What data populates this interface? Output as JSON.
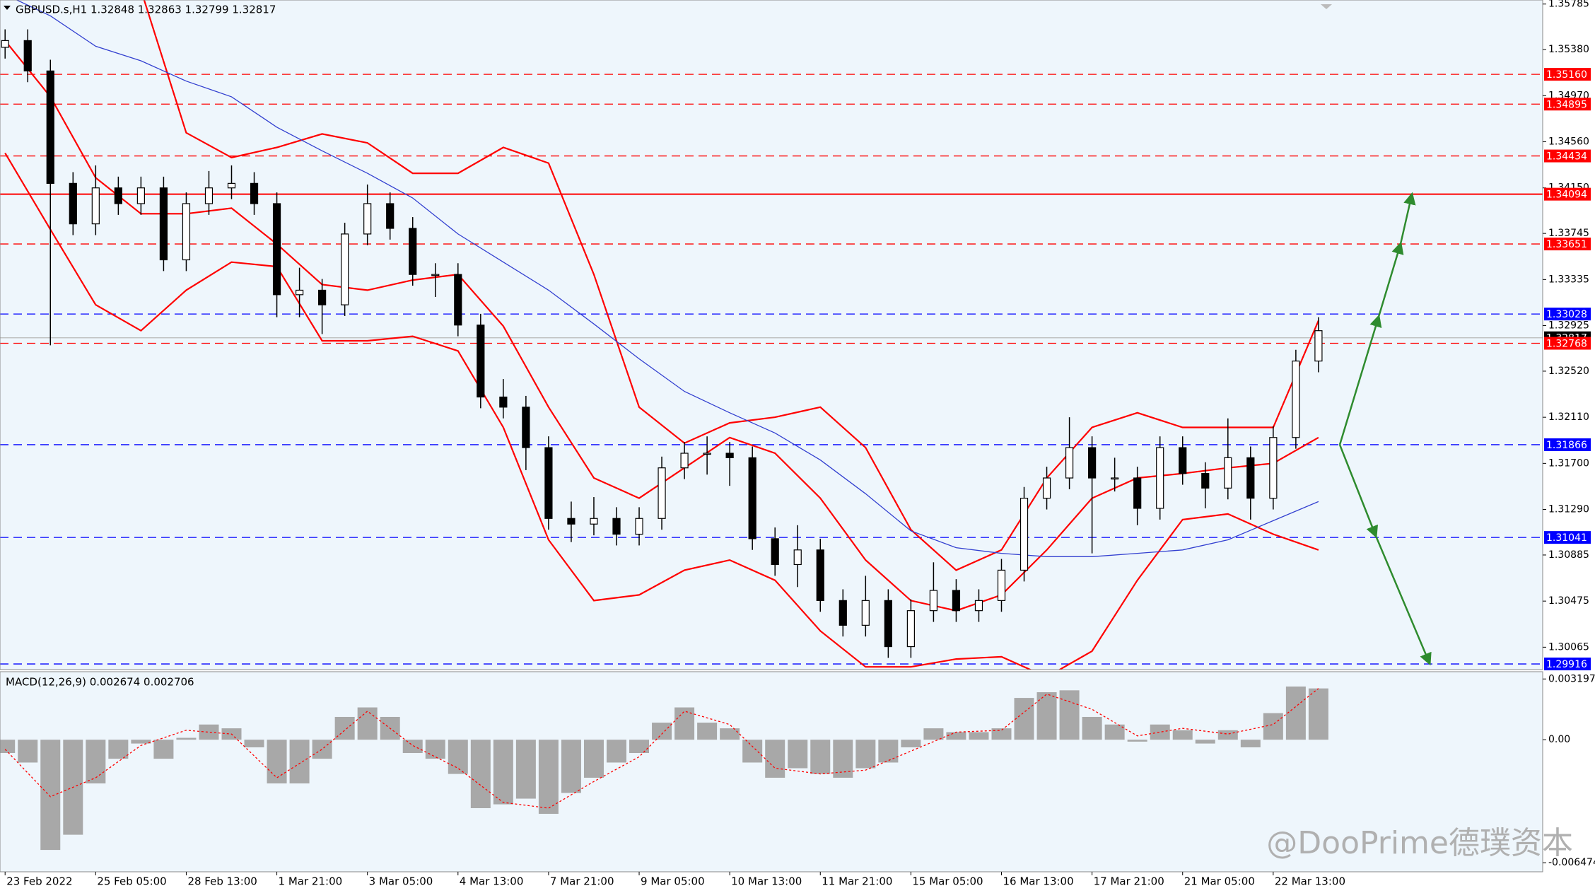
{
  "chart_data": [
    {
      "type": "candlestick",
      "title": "GBPUSD.s,H1  1.32848 1.32863 1.32799 1.32817",
      "background": "#eef6fc",
      "x": [
        0,
        8,
        16,
        24,
        32,
        40,
        48,
        56,
        64,
        72,
        80,
        88,
        96,
        104,
        112,
        120,
        128,
        136,
        144,
        152,
        160,
        168,
        176,
        184,
        192,
        200,
        208,
        216,
        224,
        232,
        240,
        248,
        256,
        264,
        272,
        280,
        288,
        296,
        304,
        312,
        320,
        328,
        336,
        344,
        352,
        360,
        368,
        376,
        384,
        392,
        400,
        408,
        416,
        424,
        432,
        440,
        448,
        456,
        464
      ],
      "open": [
        1.354,
        1.3546,
        1.3519,
        1.3419,
        1.3383,
        1.3415,
        1.3401,
        1.3415,
        1.3351,
        1.3401,
        1.3415,
        1.3419,
        1.3401,
        1.332,
        1.3324,
        1.3311,
        1.3374,
        1.3401,
        1.3379,
        1.3338,
        1.3338,
        1.3293,
        1.3229,
        1.322,
        1.3184,
        1.3121,
        1.3116,
        1.3121,
        1.3107,
        1.3121,
        1.3166,
        1.3179,
        1.3179,
        1.3175,
        1.3103,
        1.308,
        1.3093,
        1.3048,
        1.3026,
        1.3048,
        1.3007,
        1.3039,
        1.3057,
        1.3039,
        1.3048,
        1.3075,
        1.3139,
        1.3157,
        1.3184,
        1.3157,
        1.3157,
        1.313,
        1.3184,
        1.3161,
        1.3148,
        1.3175,
        1.3139,
        1.3193,
        1.3261
      ],
      "high": [
        1.3556,
        1.3556,
        1.3529,
        1.3429,
        1.3435,
        1.3425,
        1.3425,
        1.3425,
        1.3411,
        1.343,
        1.3435,
        1.3429,
        1.3411,
        1.3344,
        1.3334,
        1.3384,
        1.3418,
        1.3411,
        1.3389,
        1.3348,
        1.3348,
        1.3303,
        1.3245,
        1.323,
        1.3194,
        1.3136,
        1.314,
        1.3131,
        1.3131,
        1.3176,
        1.3189,
        1.3194,
        1.3189,
        1.3185,
        1.3113,
        1.3115,
        1.3103,
        1.3058,
        1.307,
        1.3058,
        1.3049,
        1.3082,
        1.3067,
        1.3058,
        1.3085,
        1.3149,
        1.3167,
        1.3211,
        1.3194,
        1.3175,
        1.3167,
        1.3194,
        1.3194,
        1.3171,
        1.321,
        1.3185,
        1.3203,
        1.3271,
        1.33
      ],
      "low": [
        1.353,
        1.3509,
        1.3275,
        1.3373,
        1.3373,
        1.3391,
        1.3391,
        1.3341,
        1.3341,
        1.3391,
        1.3405,
        1.3391,
        1.33,
        1.33,
        1.3285,
        1.3301,
        1.3364,
        1.3369,
        1.3328,
        1.3318,
        1.3283,
        1.3219,
        1.321,
        1.3164,
        1.3111,
        1.31,
        1.3106,
        1.3097,
        1.3097,
        1.3111,
        1.3156,
        1.316,
        1.315,
        1.3093,
        1.307,
        1.306,
        1.3038,
        1.3016,
        1.3016,
        1.2997,
        1.2997,
        1.3029,
        1.3029,
        1.3029,
        1.3038,
        1.3065,
        1.3129,
        1.3147,
        1.309,
        1.3145,
        1.3115,
        1.312,
        1.3151,
        1.313,
        1.3138,
        1.312,
        1.3129,
        1.3183,
        1.3251
      ],
      "close": [
        1.3546,
        1.3519,
        1.3419,
        1.3383,
        1.3415,
        1.3401,
        1.3415,
        1.3351,
        1.3401,
        1.3415,
        1.3419,
        1.3401,
        1.332,
        1.3324,
        1.3311,
        1.3374,
        1.3401,
        1.3379,
        1.3338,
        1.3338,
        1.3293,
        1.3229,
        1.322,
        1.3184,
        1.3121,
        1.3116,
        1.3121,
        1.3107,
        1.3121,
        1.3166,
        1.3179,
        1.3179,
        1.3175,
        1.3103,
        1.308,
        1.3093,
        1.3048,
        1.3026,
        1.3048,
        1.3007,
        1.3039,
        1.3057,
        1.3039,
        1.3048,
        1.3075,
        1.3139,
        1.3157,
        1.3184,
        1.3157,
        1.3157,
        1.313,
        1.3184,
        1.3161,
        1.3148,
        1.3175,
        1.3139,
        1.3193,
        1.3261,
        1.3288
      ],
      "overlay_x": [
        0,
        16,
        32,
        48,
        64,
        80,
        96,
        112,
        128,
        144,
        160,
        176,
        192,
        208,
        224,
        240,
        256,
        272,
        288,
        304,
        320,
        336,
        352,
        368,
        384,
        400,
        416,
        432,
        448,
        464
      ],
      "overlays": [
        {
          "color": "#ff0000",
          "values": [
            1.3654,
            1.3636,
            1.3618,
            1.3591,
            1.3464,
            1.3442,
            1.3451,
            1.3463,
            1.3455,
            1.3428,
            1.3428,
            1.3451,
            1.3437,
            1.3338,
            1.322,
            1.3188,
            1.3206,
            1.3211,
            1.322,
            1.3184,
            1.3111,
            1.3075,
            1.3093,
            1.3157,
            1.3202,
            1.3215,
            1.3202,
            1.3202,
            1.3202,
            1.3297
          ]
        },
        {
          "color": "#ff0000",
          "values": [
            1.3546,
            1.3496,
            1.3424,
            1.3392,
            1.3392,
            1.3397,
            1.3365,
            1.3329,
            1.3324,
            1.3333,
            1.3338,
            1.3292,
            1.322,
            1.3157,
            1.3139,
            1.3166,
            1.3193,
            1.3179,
            1.3139,
            1.3084,
            1.3048,
            1.3039,
            1.3053,
            1.3093,
            1.3139,
            1.3157,
            1.3161,
            1.3166,
            1.317,
            1.3193
          ]
        },
        {
          "color": "#ff0000",
          "values": [
            1.3446,
            1.3378,
            1.3311,
            1.3288,
            1.3324,
            1.3349,
            1.3345,
            1.3279,
            1.3279,
            1.3283,
            1.327,
            1.3202,
            1.3102,
            1.3048,
            1.3053,
            1.3075,
            1.3084,
            1.3066,
            1.3021,
            1.2989,
            1.2989,
            1.2996,
            1.2998,
            1.298,
            1.3003,
            1.3066,
            1.312,
            1.3125,
            1.3107,
            1.3093
          ]
        },
        {
          "color": "#3340d0",
          "values": [
            1.3587,
            1.3568,
            1.3541,
            1.3528,
            1.351,
            1.3496,
            1.3469,
            1.3448,
            1.3428,
            1.3406,
            1.3374,
            1.3349,
            1.3324,
            1.3294,
            1.3263,
            1.3234,
            1.3215,
            1.3197,
            1.3173,
            1.3143,
            1.311,
            1.3095,
            1.309,
            1.3087,
            1.3087,
            1.309,
            1.3093,
            1.3102,
            1.3119,
            1.3136
          ]
        }
      ],
      "levels": [
        {
          "value": 1.3516,
          "label": "1.35160",
          "color": "#ff0000",
          "style": "dashed"
        },
        {
          "value": 1.34895,
          "label": "1.34895",
          "color": "#ff0000",
          "style": "dashed"
        },
        {
          "value": 1.34434,
          "label": "1.34434",
          "color": "#ff0000",
          "style": "dashed"
        },
        {
          "value": 1.34094,
          "label": "1.34094",
          "color": "#ff0000",
          "style": "solid"
        },
        {
          "value": 1.33651,
          "label": "1.33651",
          "color": "#ff0000",
          "style": "dashed"
        },
        {
          "value": 1.33028,
          "label": "1.33028",
          "color": "#0000ff",
          "style": "dashed"
        },
        {
          "value": 1.32817,
          "label": "1.32817",
          "color": "#000000",
          "style": "current"
        },
        {
          "value": 1.32768,
          "label": "1.32768",
          "color": "#ff0000",
          "style": "dashed"
        },
        {
          "value": 1.31866,
          "label": "1.31866",
          "color": "#0000ff",
          "style": "dashed"
        },
        {
          "value": 1.31041,
          "label": "1.31041",
          "color": "#0000ff",
          "style": "dashed"
        },
        {
          "value": 1.29916,
          "label": "1.29916",
          "color": "#0000ff",
          "style": "dashed"
        }
      ],
      "xlim": [
        -1.8,
        543.2
      ],
      "xticks": [
        {
          "value": 0,
          "label": "23 Feb 2022"
        },
        {
          "value": 32,
          "label": "25 Feb 05:00"
        },
        {
          "value": 64,
          "label": "28 Feb 13:00"
        },
        {
          "value": 96,
          "label": "1 Mar 21:00"
        },
        {
          "value": 128,
          "label": "3 Mar 05:00"
        },
        {
          "value": 160,
          "label": "4 Mar 13:00"
        },
        {
          "value": 192,
          "label": "7 Mar 21:00"
        },
        {
          "value": 224,
          "label": "9 Mar 05:00"
        },
        {
          "value": 256,
          "label": "10 Mar 13:00"
        },
        {
          "value": 288,
          "label": "11 Mar 21:00"
        },
        {
          "value": 320,
          "label": "15 Mar 05:00"
        },
        {
          "value": 352,
          "label": "16 Mar 13:00"
        },
        {
          "value": 384,
          "label": "17 Mar 21:00"
        },
        {
          "value": 416,
          "label": "21 Mar 05:00"
        },
        {
          "value": 448,
          "label": "22 Mar 13:00"
        }
      ],
      "ylim": [
        1.29866,
        1.35821
      ],
      "yticks": [
        {
          "value": 1.35785,
          "label": "1.35785"
        },
        {
          "value": 1.3538,
          "label": "1.35380"
        },
        {
          "value": 1.3497,
          "label": "1.34970"
        },
        {
          "value": 1.3456,
          "label": "1.34560"
        },
        {
          "value": 1.3415,
          "label": "1.34150"
        },
        {
          "value": 1.33745,
          "label": "1.33745"
        },
        {
          "value": 1.33335,
          "label": "1.33335"
        },
        {
          "value": 1.32925,
          "label": "1.32925"
        },
        {
          "value": 1.3252,
          "label": "1.32520"
        },
        {
          "value": 1.3211,
          "label": "1.32110"
        },
        {
          "value": 1.317,
          "label": "1.31700"
        },
        {
          "value": 1.3129,
          "label": "1.31290"
        },
        {
          "value": 1.30885,
          "label": "1.30885"
        },
        {
          "value": 1.30475,
          "label": "1.30475"
        },
        {
          "value": 1.30065,
          "label": "1.30065"
        }
      ]
    },
    {
      "type": "bar",
      "title": "MACD(12,26,9) 0.002674 0.002706",
      "color": "#a8a8a8",
      "x": [
        0,
        8,
        16,
        24,
        32,
        40,
        48,
        56,
        64,
        72,
        80,
        88,
        96,
        104,
        112,
        120,
        128,
        136,
        144,
        152,
        160,
        168,
        176,
        184,
        192,
        200,
        208,
        216,
        224,
        232,
        240,
        248,
        256,
        264,
        272,
        280,
        288,
        296,
        304,
        312,
        320,
        328,
        336,
        344,
        352,
        360,
        368,
        376,
        384,
        392,
        400,
        408,
        416,
        424,
        432,
        440,
        448,
        456,
        464
      ],
      "values": [
        -0.0007,
        -0.0012,
        -0.0058,
        -0.005,
        -0.0023,
        -0.001,
        -0.0002,
        -0.001,
        0.0001,
        0.0008,
        0.0006,
        -0.0004,
        -0.0023,
        -0.0023,
        -0.001,
        0.0012,
        0.0017,
        0.0012,
        -0.0007,
        -0.001,
        -0.0018,
        -0.0036,
        -0.0034,
        -0.0031,
        -0.0039,
        -0.0028,
        -0.002,
        -0.0012,
        -0.0007,
        0.0009,
        0.0017,
        0.0009,
        0.0006,
        -0.0012,
        -0.002,
        -0.0015,
        -0.0018,
        -0.002,
        -0.0015,
        -0.0012,
        -0.0004,
        0.0006,
        0.0004,
        0.0004,
        0.0006,
        0.0022,
        0.0025,
        0.0026,
        0.0012,
        0.0008,
        -0.0001,
        0.0008,
        0.0005,
        -0.0002,
        0.0005,
        -0.0004,
        0.0014,
        0.0028,
        0.0027
      ],
      "signal_color": "#ff0000",
      "signal_x": [
        0,
        16,
        32,
        48,
        64,
        80,
        96,
        112,
        128,
        144,
        160,
        176,
        192,
        208,
        224,
        240,
        256,
        272,
        288,
        304,
        320,
        336,
        352,
        368,
        384,
        400,
        416,
        432,
        448,
        464
      ],
      "signal": [
        -0.0005,
        -0.003,
        -0.002,
        -0.0003,
        0.0005,
        0.0003,
        -0.002,
        -0.0005,
        0.0015,
        -0.0003,
        -0.0015,
        -0.0033,
        -0.0036,
        -0.0022,
        -0.0009,
        0.0015,
        0.0008,
        -0.0015,
        -0.0018,
        -0.0016,
        -0.0006,
        0.0004,
        0.0005,
        0.0024,
        0.0016,
        0.0002,
        0.0006,
        0.0003,
        0.0008,
        0.0027
      ],
      "ylim": [
        -0.00695,
        0.00358
      ],
      "yticks": [
        0.003197,
        {
          "value": 0,
          "label": "0.00"
        },
        -0.006474
      ]
    }
  ],
  "watermark": "@DooPrime德璞资本"
}
